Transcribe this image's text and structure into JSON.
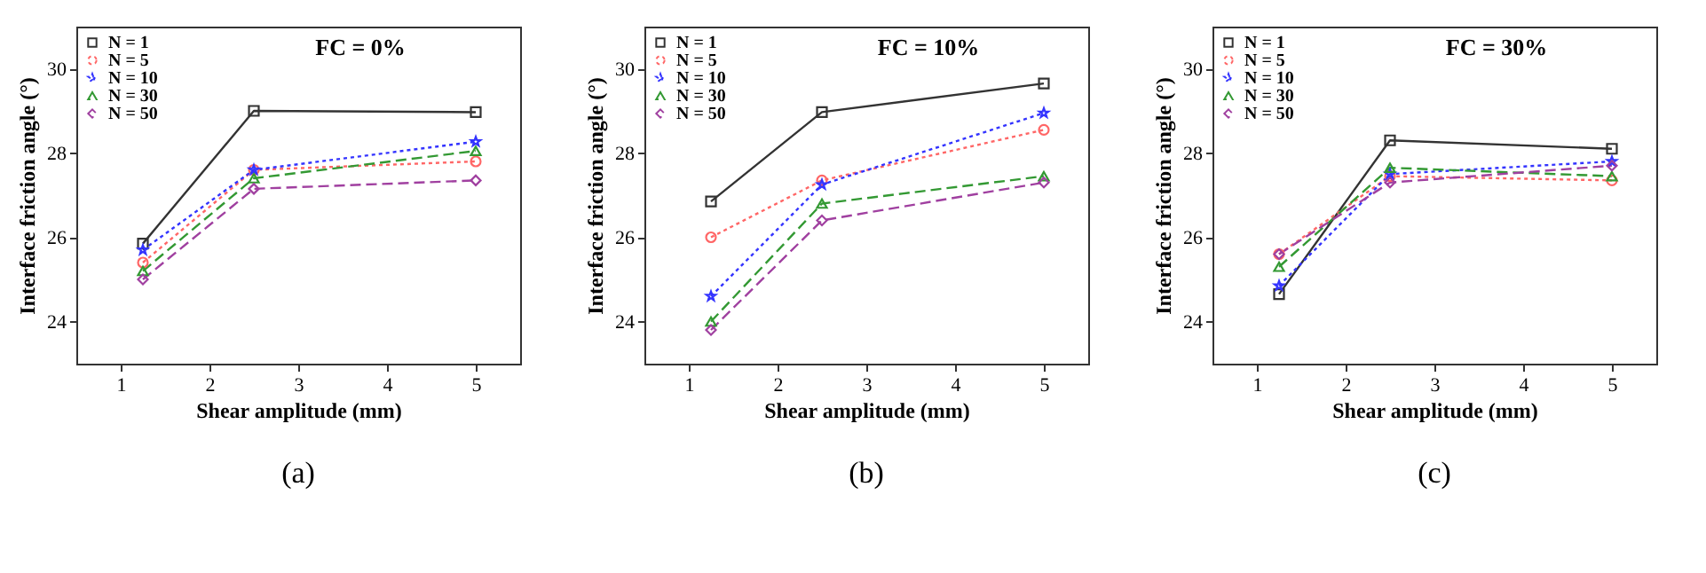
{
  "chart_data": [
    {
      "type": "line",
      "title": "(a)",
      "annotations": [
        "FC = 0%"
      ],
      "xlabel": "Shear amplitude (mm)",
      "ylabel": "Interface friction angle (°)",
      "x": [
        1.25,
        2.5,
        5
      ],
      "xlim": [
        0.5,
        5.5
      ],
      "xticks": [
        1,
        2,
        3,
        4,
        5
      ],
      "ylim": [
        23,
        31
      ],
      "yticks": [
        24,
        26,
        28,
        30
      ],
      "grid": false,
      "legend": "top left",
      "series": [
        {
          "name": "N = 1",
          "color": "#333333",
          "marker": "square",
          "line_style": "solid",
          "values": [
            25.85,
            29.0,
            28.97
          ]
        },
        {
          "name": "N = 5",
          "color": "#ff6666",
          "marker": "circle",
          "line_style": "dotted",
          "values": [
            25.4,
            27.6,
            27.8
          ]
        },
        {
          "name": "N = 10",
          "color": "#3333ff",
          "marker": "star",
          "line_style": "dotted",
          "values": [
            25.7,
            27.6,
            28.27
          ]
        },
        {
          "name": "N = 30",
          "color": "#339933",
          "marker": "triangle",
          "line_style": "dashed",
          "values": [
            25.2,
            27.4,
            28.05
          ]
        },
        {
          "name": "N = 50",
          "color": "#a040a0",
          "marker": "diamond",
          "line_style": "dashed",
          "values": [
            25.0,
            27.15,
            27.35
          ]
        }
      ]
    },
    {
      "type": "line",
      "title": "(b)",
      "annotations": [
        "FC = 10%"
      ],
      "xlabel": "Shear amplitude (mm)",
      "ylabel": "Interface friction angle (°)",
      "x": [
        1.25,
        2.5,
        5
      ],
      "xlim": [
        0.5,
        5.5
      ],
      "xticks": [
        1,
        2,
        3,
        4,
        5
      ],
      "ylim": [
        23,
        31
      ],
      "yticks": [
        24,
        26,
        28,
        30
      ],
      "grid": false,
      "legend": "top left",
      "series": [
        {
          "name": "N = 1",
          "color": "#333333",
          "marker": "square",
          "line_style": "solid",
          "values": [
            26.85,
            28.97,
            29.65
          ]
        },
        {
          "name": "N = 5",
          "color": "#ff6666",
          "marker": "circle",
          "line_style": "dotted",
          "values": [
            26.0,
            27.35,
            28.55
          ]
        },
        {
          "name": "N = 10",
          "color": "#3333ff",
          "marker": "star",
          "line_style": "dotted",
          "values": [
            24.6,
            27.25,
            28.95
          ]
        },
        {
          "name": "N = 30",
          "color": "#339933",
          "marker": "triangle",
          "line_style": "dashed",
          "values": [
            24.0,
            26.8,
            27.45
          ]
        },
        {
          "name": "N = 50",
          "color": "#a040a0",
          "marker": "diamond",
          "line_style": "dashed",
          "values": [
            23.8,
            26.4,
            27.3
          ]
        }
      ]
    },
    {
      "type": "line",
      "title": "(c)",
      "annotations": [
        "FC = 30%"
      ],
      "xlabel": "Shear amplitude (mm)",
      "ylabel": "Interface friction angle (°)",
      "x": [
        1.25,
        2.5,
        5
      ],
      "xlim": [
        0.5,
        5.5
      ],
      "xticks": [
        1,
        2,
        3,
        4,
        5
      ],
      "ylim": [
        23,
        31
      ],
      "yticks": [
        24,
        26,
        28,
        30
      ],
      "grid": false,
      "legend": "top left",
      "series": [
        {
          "name": "N = 1",
          "color": "#333333",
          "marker": "square",
          "line_style": "solid",
          "values": [
            24.65,
            28.3,
            28.1
          ]
        },
        {
          "name": "N = 5",
          "color": "#ff6666",
          "marker": "circle",
          "line_style": "dotted",
          "values": [
            25.6,
            27.45,
            27.35
          ]
        },
        {
          "name": "N = 10",
          "color": "#3333ff",
          "marker": "star",
          "line_style": "dotted",
          "values": [
            24.85,
            27.5,
            27.8
          ]
        },
        {
          "name": "N = 30",
          "color": "#339933",
          "marker": "triangle",
          "line_style": "dashed",
          "values": [
            25.3,
            27.65,
            27.45
          ]
        },
        {
          "name": "N = 50",
          "color": "#a040a0",
          "marker": "diamond",
          "line_style": "dashed",
          "values": [
            25.6,
            27.3,
            27.7
          ]
        }
      ]
    }
  ]
}
